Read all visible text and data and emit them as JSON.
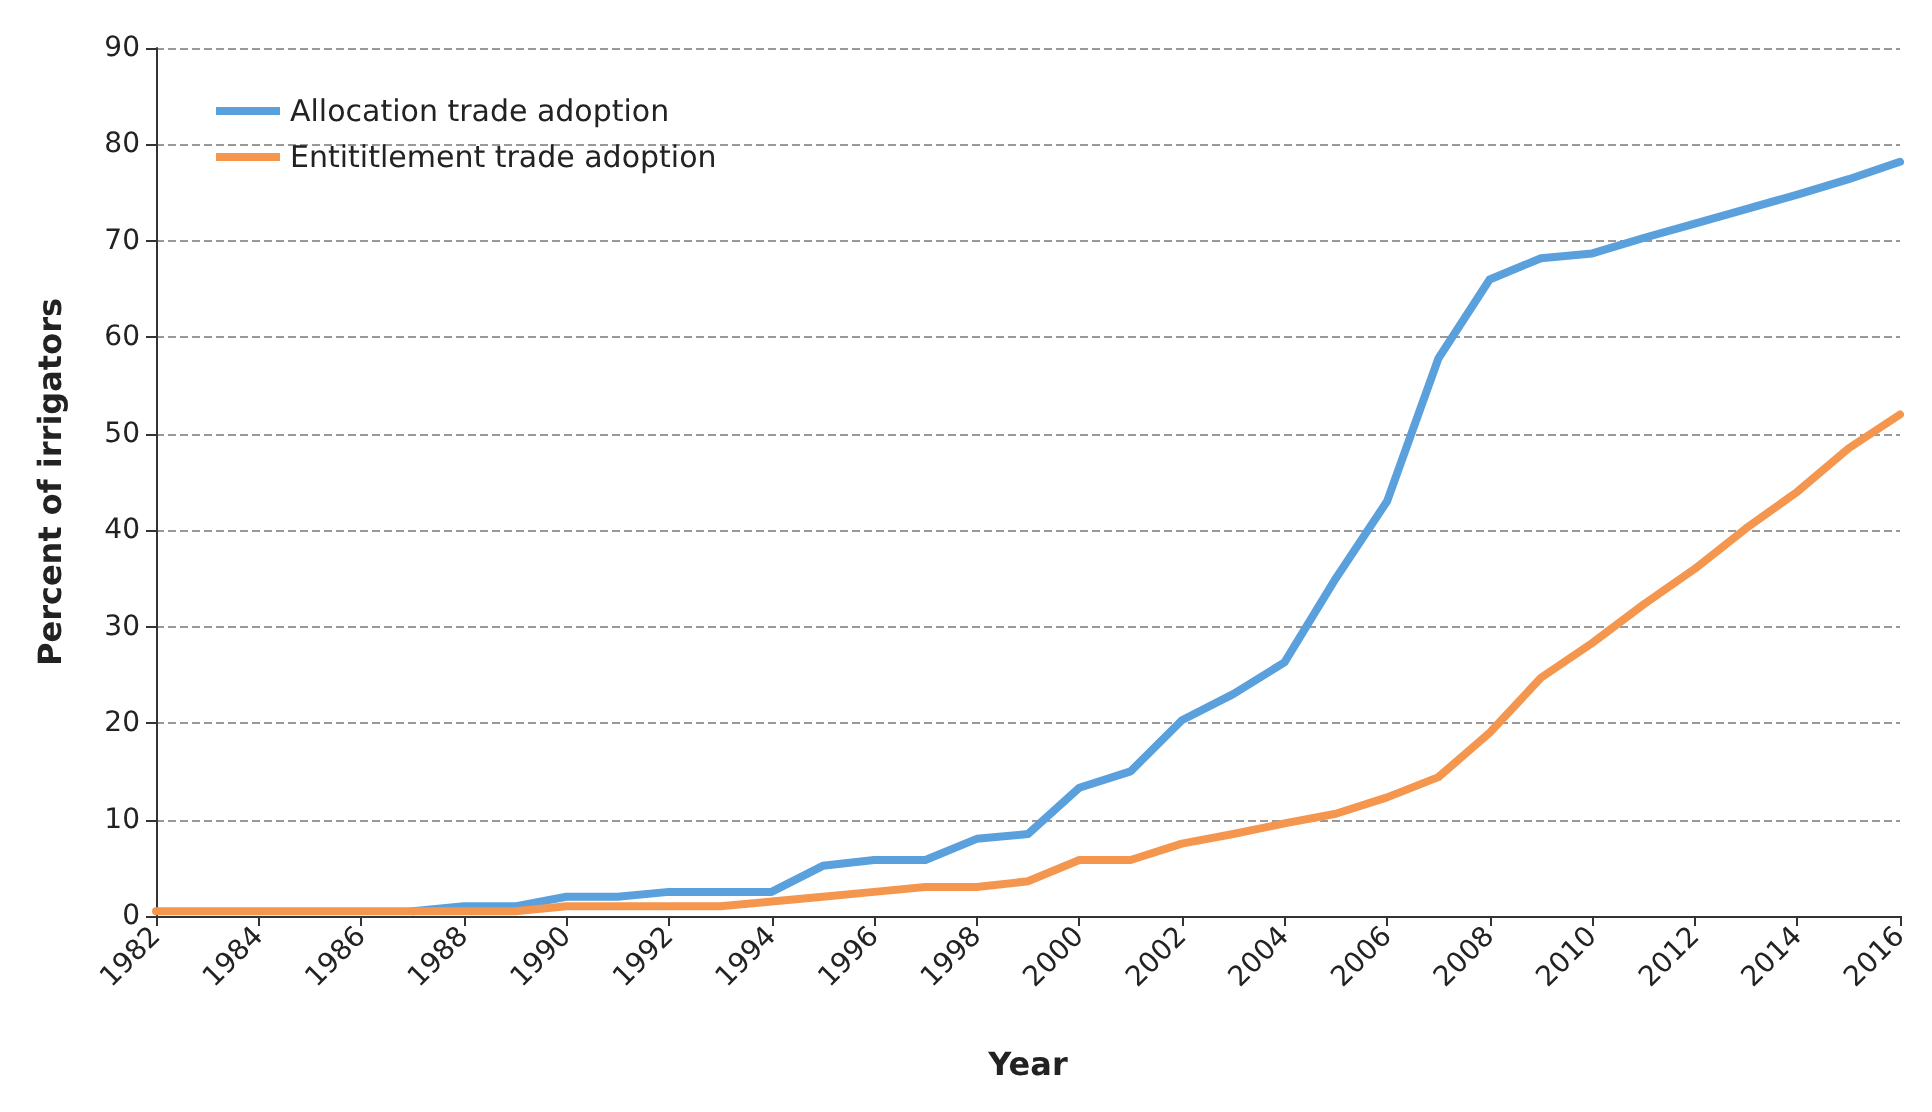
{
  "chart_data": {
    "type": "line",
    "xlabel": "Year",
    "ylabel": "Percent of irrigators",
    "x": [
      1982,
      1983,
      1984,
      1985,
      1986,
      1987,
      1988,
      1989,
      1990,
      1991,
      1992,
      1993,
      1994,
      1995,
      1996,
      1997,
      1998,
      1999,
      2000,
      2001,
      2002,
      2003,
      2004,
      2005,
      2006,
      2007,
      2008,
      2009,
      2010,
      2011,
      2012,
      2013,
      2014,
      2015,
      2016
    ],
    "series": [
      {
        "name": "Allocation trade adoption",
        "color": "#5aa0dc",
        "values": [
          null,
          null,
          null,
          null,
          null,
          0.5,
          1,
          1,
          2,
          2,
          2.5,
          2.5,
          2.5,
          5.2,
          5.8,
          5.8,
          8,
          8.5,
          13.3,
          15,
          20.3,
          23,
          26.3,
          35,
          43,
          57.8,
          66,
          68.2,
          68.7,
          70.3,
          71.8,
          73.3,
          74.8,
          76.4,
          78.2
        ]
      },
      {
        "name": "Entititlement trade adoption",
        "color": "#f5964f",
        "values": [
          0.5,
          0.5,
          0.5,
          0.5,
          0.5,
          0.5,
          0.5,
          0.5,
          1,
          1,
          1,
          1,
          1.5,
          2,
          2.5,
          3,
          3,
          3.6,
          5.8,
          5.8,
          7.5,
          8.5,
          9.6,
          10.6,
          12.3,
          14.4,
          19,
          24.7,
          28.3,
          32.3,
          36,
          40.2,
          44,
          48.5,
          52
        ]
      }
    ],
    "xlim": [
      1982,
      2016
    ],
    "xticks": [
      1982,
      1984,
      1986,
      1988,
      1990,
      1992,
      1994,
      1996,
      1998,
      2000,
      2002,
      2004,
      2006,
      2008,
      2010,
      2012,
      2014,
      2016
    ],
    "ylim": [
      0,
      90
    ],
    "yticks": [
      0,
      10,
      20,
      30,
      40,
      50,
      60,
      70,
      80,
      90
    ],
    "grid": "y",
    "legend": "top left",
    "marker": "none",
    "line_style": "solid"
  }
}
